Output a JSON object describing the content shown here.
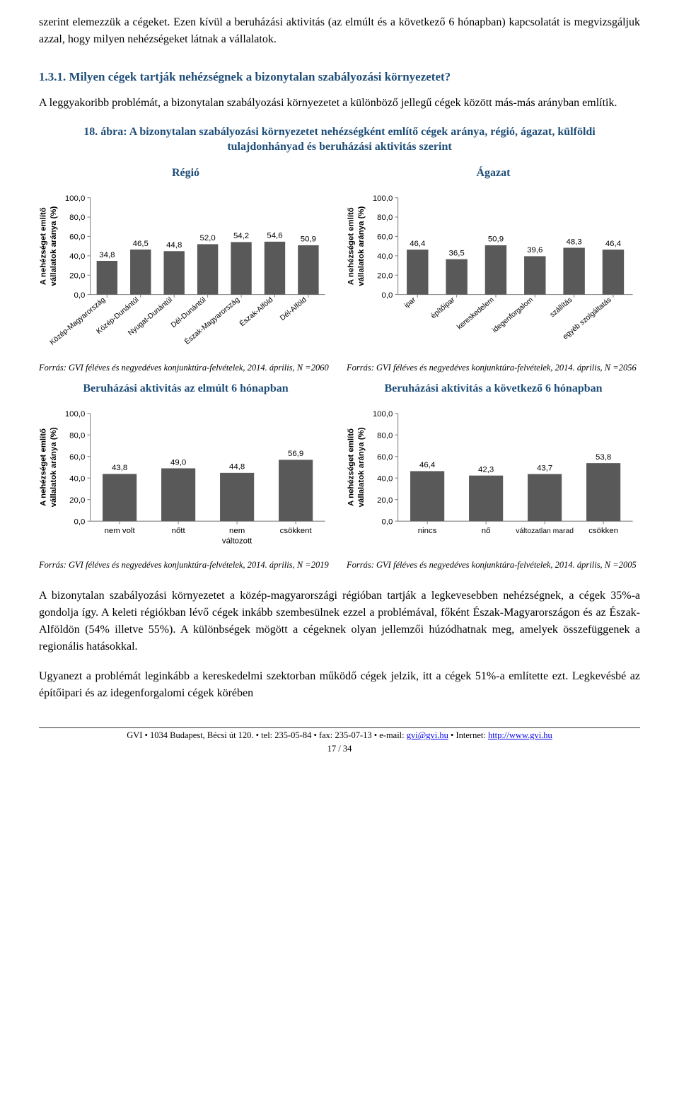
{
  "paragraphs": {
    "p1": "szerint elemezzük a cégeket. Ezen kívül a beruházási aktivitás (az elmúlt és a következő 6 hónapban) kapcsolatát is megvizsgáljuk azzal, hogy milyen nehézségeket látnak a vállalatok.",
    "p2": "A leggyakoribb problémát, a bizonytalan szabályozási környezetet a különböző jellegű cégek között más-más arányban említik.",
    "p3": "A bizonytalan szabályozási környezetet a közép-magyarországi régióban tartják a legkevesebben nehézségnek, a cégek 35%-a gondolja így. A keleti régiókban lévő cégek inkább szembesülnek ezzel a problémával, főként Észak-Magyarországon és az Észak-Alföldön (54% illetve 55%). A különbségek mögött a cégeknek olyan jellemzői húzódhatnak meg, amelyek összefüggenek a regionális hatásokkal.",
    "p4": "Ugyanezt a problémát leginkább a kereskedelmi szektorban működő cégek jelzik, itt a cégek 51%-a említette ezt. Legkevésbé az építőipari és az idegenforgalomi cégek körében"
  },
  "heading": "1.3.1. Milyen cégek tartják nehézségnek a bizonytalan szabályozási környezetet?",
  "fig_caption_a": "18. ábra: A bizonytalan szabályozási környezetet nehézségként említő",
  "fig_caption_b": " cégek aránya, régió, ágazat, külföldi tulajdonhányad és beruházási aktivitás szerint",
  "chart_common": {
    "ylabel_line1": "A nehézséget említő",
    "ylabel_line2": "vállalatok aránya (%)",
    "ylim": [
      0,
      100
    ],
    "ytick_step": 20,
    "yticks": [
      "0,0",
      "20,0",
      "40,0",
      "60,0",
      "80,0",
      "100,0"
    ],
    "bar_color": "#595959",
    "axis_color": "#808080",
    "tick_color": "#808080",
    "background": "#ffffff",
    "text_color": "#000000",
    "value_fontsize": 11,
    "tick_fontsize": 11,
    "ylabel_fontsize": 11
  },
  "charts": {
    "regio": {
      "title": "Régió",
      "cat_rotate": -40,
      "categories": [
        "Közép-Magyarország",
        "Közép-Dunántúl",
        "Nyugat-Dunántúl",
        "Dél-Dunántúl",
        "Észak-Magyarország",
        "Észak-Alföld",
        "Dél-Alföld"
      ],
      "values": [
        34.8,
        46.5,
        44.8,
        52.0,
        54.2,
        54.6,
        50.9
      ],
      "labels": [
        "34,8",
        "46,5",
        "44,8",
        "52,0",
        "54,2",
        "54,6",
        "50,9"
      ],
      "bar_width": 0.62,
      "source": "Forrás: GVI féléves és negyedéves konjunktúra-felvételek, 2014. április, N =2060"
    },
    "agazat": {
      "title": "Ágazat",
      "cat_rotate": -40,
      "categories": [
        "ipar",
        "építőipar",
        "kereskedelem",
        "idegenforgalom",
        "szállítás",
        "egyéb szolgáltatás"
      ],
      "values": [
        46.4,
        36.5,
        50.9,
        39.6,
        48.3,
        46.4
      ],
      "labels": [
        "46,4",
        "36,5",
        "50,9",
        "39,6",
        "48,3",
        "46,4"
      ],
      "bar_width": 0.55,
      "source": "Forrás: GVI féléves és negyedéves konjunktúra-felvételek, 2014. április, N =2056"
    },
    "elmult": {
      "title": "Beruházási aktivitás az elmúlt 6 hónapban",
      "cat_rotate": 0,
      "categories": [
        "nem volt",
        "nőtt",
        "nem változott",
        "csökkent"
      ],
      "values": [
        43.8,
        49.0,
        44.8,
        56.9
      ],
      "labels": [
        "43,8",
        "49,0",
        "44,8",
        "56,9"
      ],
      "bar_width": 0.58,
      "source": "Forrás: GVI féléves és negyedéves konjunktúra-felvételek, 2014. április, N =2019"
    },
    "kovetkezo": {
      "title": "Beruházási aktivitás a következő 6 hónapban",
      "cat_rotate": 0,
      "categories": [
        "nincs",
        "nő",
        "változatlan marad",
        "csökken"
      ],
      "values": [
        46.4,
        42.3,
        43.7,
        53.8
      ],
      "labels": [
        "46,4",
        "42,3",
        "43,7",
        "53,8"
      ],
      "bar_width": 0.58,
      "source": "Forrás: GVI féléves és negyedéves konjunktúra-felvételek, 2014. április, N =2005"
    }
  },
  "footer": {
    "org": "GVI",
    "addr": " • 1034 Budapest, Bécsi út 120. • tel: 235-05-84 • fax: 235-07-13 • e-mail: ",
    "email": "gvi@gvi.hu",
    "mid": " • Internet: ",
    "url": "http://www.gvi.hu",
    "page": "17 / 34"
  }
}
